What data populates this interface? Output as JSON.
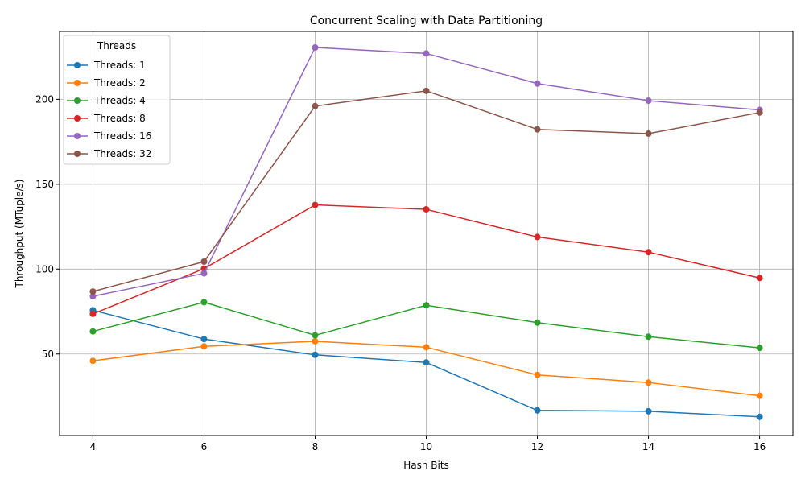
{
  "chart_data": {
    "type": "line",
    "title": "Concurrent Scaling with Data Partitioning",
    "xlabel": "Hash Bits",
    "ylabel": "Throughput (MTuple/s)",
    "x": [
      4,
      6,
      8,
      10,
      12,
      14,
      16
    ],
    "xlim": [
      3.4,
      16.6
    ],
    "ylim": [
      2.0,
      240.0
    ],
    "xticks": [
      4,
      6,
      8,
      10,
      12,
      14,
      16
    ],
    "yticks": [
      50,
      100,
      150,
      200
    ],
    "grid": true,
    "legend": {
      "title": "Threads",
      "placement": "top-left"
    },
    "series": [
      {
        "name": "Threads: 1",
        "color": "#1f77b4",
        "values": [
          75.8,
          58.8,
          49.5,
          45.0,
          16.8,
          16.3,
          13.0
        ]
      },
      {
        "name": "Threads: 2",
        "color": "#ff7f0e",
        "values": [
          46.0,
          54.5,
          57.5,
          54.0,
          37.7,
          33.2,
          25.4
        ]
      },
      {
        "name": "Threads: 4",
        "color": "#2ca02c",
        "values": [
          63.3,
          80.5,
          61.0,
          78.7,
          68.5,
          60.2,
          53.6
        ]
      },
      {
        "name": "Threads: 8",
        "color": "#d62728",
        "values": [
          73.6,
          100.3,
          137.8,
          135.2,
          118.9,
          110.0,
          94.8
        ]
      },
      {
        "name": "Threads: 16",
        "color": "#9467bd",
        "values": [
          84.0,
          97.5,
          230.5,
          227.0,
          209.3,
          199.2,
          193.8
        ]
      },
      {
        "name": "Threads: 32",
        "color": "#8c564b",
        "values": [
          86.8,
          104.4,
          196.0,
          205.0,
          182.3,
          179.8,
          192.2
        ]
      }
    ]
  }
}
